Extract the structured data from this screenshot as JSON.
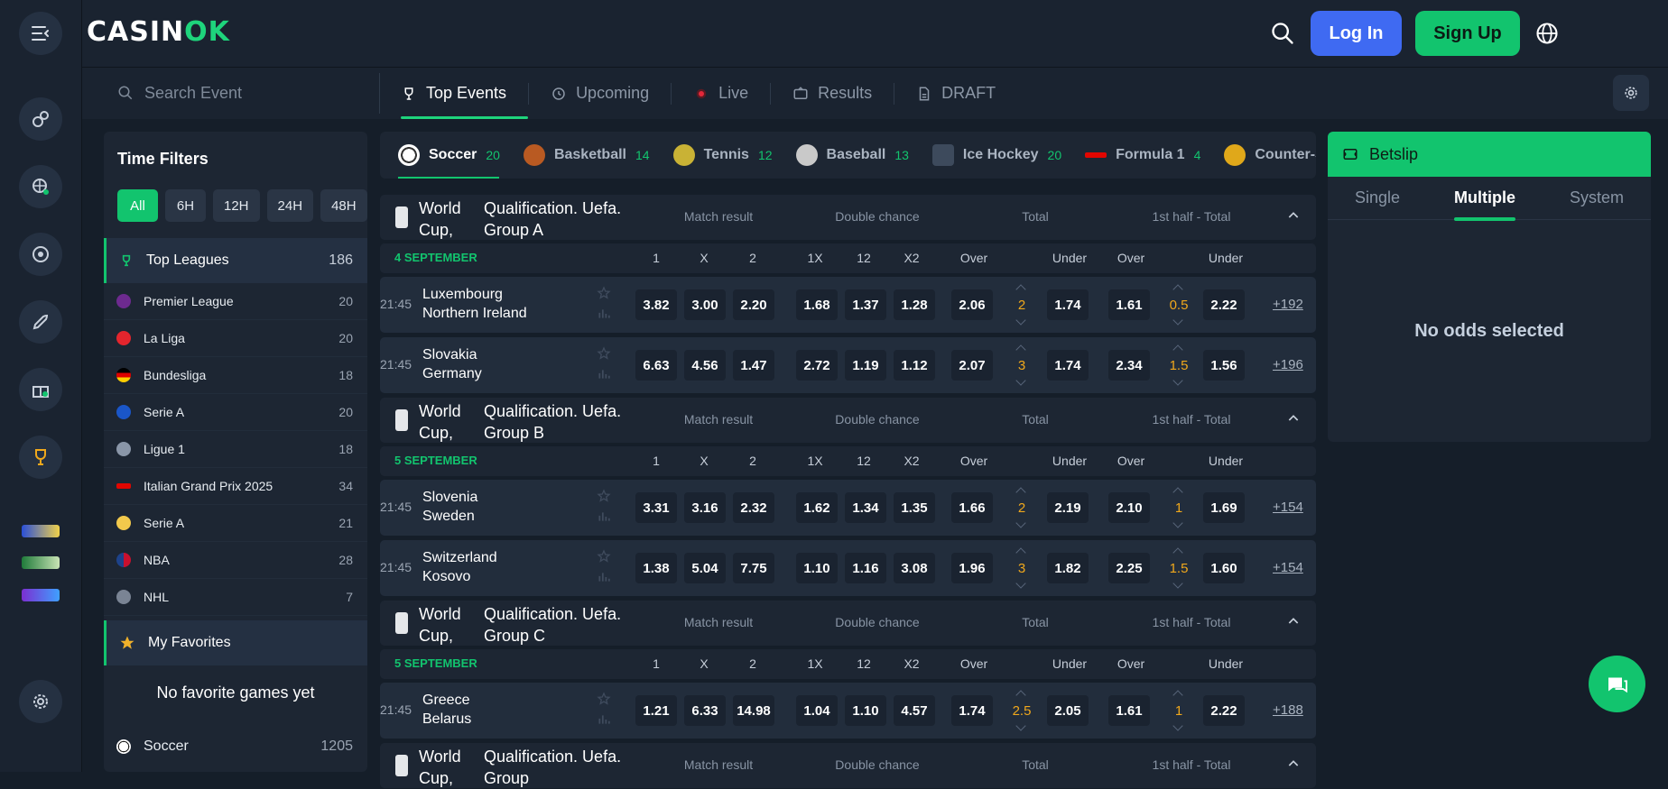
{
  "brand": {
    "logo_prefix": "CASIN",
    "logo_suffix": "OK"
  },
  "header": {
    "login_label": "Log In",
    "signup_label": "Sign Up"
  },
  "subnav": {
    "search_placeholder": "Search Event",
    "tabs": [
      {
        "label": "Top Events",
        "icon": "trophy-icon",
        "active": true
      },
      {
        "label": "Upcoming",
        "icon": "clock-icon"
      },
      {
        "label": "Live",
        "icon": "live-dot-icon"
      },
      {
        "label": "Results",
        "icon": "ticket-icon"
      },
      {
        "label": "DRAFT",
        "icon": "document-icon"
      }
    ]
  },
  "left_panel": {
    "title": "Time Filters",
    "time_filters": [
      "All",
      "6H",
      "12H",
      "24H",
      "48H"
    ],
    "active_filter": "All",
    "top_leagues": {
      "label": "Top Leagues",
      "count": "186"
    },
    "leagues": [
      {
        "name": "Premier League",
        "count": "20",
        "color": "#6d2a8f"
      },
      {
        "name": "La Liga",
        "count": "20",
        "color": "#e4252d"
      },
      {
        "name": "Bundesliga",
        "count": "18",
        "color": "#dd0000"
      },
      {
        "name": "Serie A",
        "count": "20",
        "color": "#1a56c8"
      },
      {
        "name": "Ligue 1",
        "count": "18",
        "color": "#8a96a8"
      },
      {
        "name": "Italian Grand Prix 2025",
        "count": "34",
        "color": "#e10600"
      },
      {
        "name": "Serie A",
        "count": "21",
        "color": "#f2c94c"
      },
      {
        "name": "NBA",
        "count": "28",
        "color": "#1d428a"
      },
      {
        "name": "NHL",
        "count": "7",
        "color": "#7a8494"
      }
    ],
    "favorites": {
      "label": "My Favorites",
      "empty_text": "No favorite games yet"
    },
    "sport_row": {
      "label": "Soccer",
      "count": "1205"
    }
  },
  "sports": [
    {
      "name": "Soccer",
      "count": "20",
      "color": "#ffffff"
    },
    {
      "name": "Basketball",
      "count": "14",
      "color": "#d9702b"
    },
    {
      "name": "Tennis",
      "count": "12",
      "color": "#d8c23a"
    },
    {
      "name": "Baseball",
      "count": "13",
      "color": "#d7d7d7"
    },
    {
      "name": "Ice Hockey",
      "count": "20",
      "color": "#6b7b90"
    },
    {
      "name": "Formula 1",
      "count": "4",
      "color": "#e10600"
    },
    {
      "name": "Counter-Strike",
      "count": "",
      "color": "#e0a81a"
    }
  ],
  "market_headers": {
    "match_result": "Match result",
    "double_chance": "Double chance",
    "total": "Total",
    "half_total": "1st half - Total"
  },
  "column_headers": [
    "1",
    "X",
    "2",
    "1X",
    "12",
    "X2",
    "Over",
    "Under",
    "Over",
    "Under"
  ],
  "groups": [
    {
      "title_left": "World Cup,",
      "title_right": "Qualification. Uefa. Group A",
      "date": "4 SEPTEMBER",
      "matches": [
        {
          "time": "21:45",
          "home": "Luxembourg",
          "away": "Northern Ireland",
          "odds": [
            "3.82",
            "3.00",
            "2.20",
            "1.68",
            "1.37",
            "1.28",
            "2.06",
            "1.74",
            "1.61",
            "2.22"
          ],
          "total_line": "2",
          "half_line": "0.5",
          "more": "+192"
        },
        {
          "time": "21:45",
          "home": "Slovakia",
          "away": "Germany",
          "odds": [
            "6.63",
            "4.56",
            "1.47",
            "2.72",
            "1.19",
            "1.12",
            "2.07",
            "1.74",
            "2.34",
            "1.56"
          ],
          "total_line": "3",
          "half_line": "1.5",
          "more": "+196"
        }
      ]
    },
    {
      "title_left": "World Cup,",
      "title_right": "Qualification. Uefa. Group B",
      "date": "5 SEPTEMBER",
      "matches": [
        {
          "time": "21:45",
          "home": "Slovenia",
          "away": "Sweden",
          "odds": [
            "3.31",
            "3.16",
            "2.32",
            "1.62",
            "1.34",
            "1.35",
            "1.66",
            "2.19",
            "2.10",
            "1.69"
          ],
          "total_line": "2",
          "half_line": "1",
          "more": "+154"
        },
        {
          "time": "21:45",
          "home": "Switzerland",
          "away": "Kosovo",
          "odds": [
            "1.38",
            "5.04",
            "7.75",
            "1.10",
            "1.16",
            "3.08",
            "1.96",
            "1.82",
            "2.25",
            "1.60"
          ],
          "total_line": "3",
          "half_line": "1.5",
          "more": "+154"
        }
      ]
    },
    {
      "title_left": "World Cup,",
      "title_right": "Qualification. Uefa. Group C",
      "date": "5 SEPTEMBER",
      "matches": [
        {
          "time": "21:45",
          "home": "Greece",
          "away": "Belarus",
          "odds": [
            "1.21",
            "6.33",
            "14.98",
            "1.04",
            "1.10",
            "4.57",
            "1.74",
            "2.05",
            "1.61",
            "2.22"
          ],
          "total_line": "2.5",
          "half_line": "1",
          "more": "+188"
        }
      ]
    },
    {
      "title_left": "World Cup,",
      "title_right": "Qualification. Uefa. Group",
      "date": "",
      "matches": []
    }
  ],
  "betslip": {
    "title": "Betslip",
    "tabs": [
      "Single",
      "Multiple",
      "System"
    ],
    "active_tab": "Multiple",
    "empty_text": "No odds selected"
  },
  "colors": {
    "accent": "#12c46e",
    "login": "#3f6af2",
    "line_value": "#f0a81c",
    "bg": "#151e29",
    "panel": "#1d2633"
  }
}
